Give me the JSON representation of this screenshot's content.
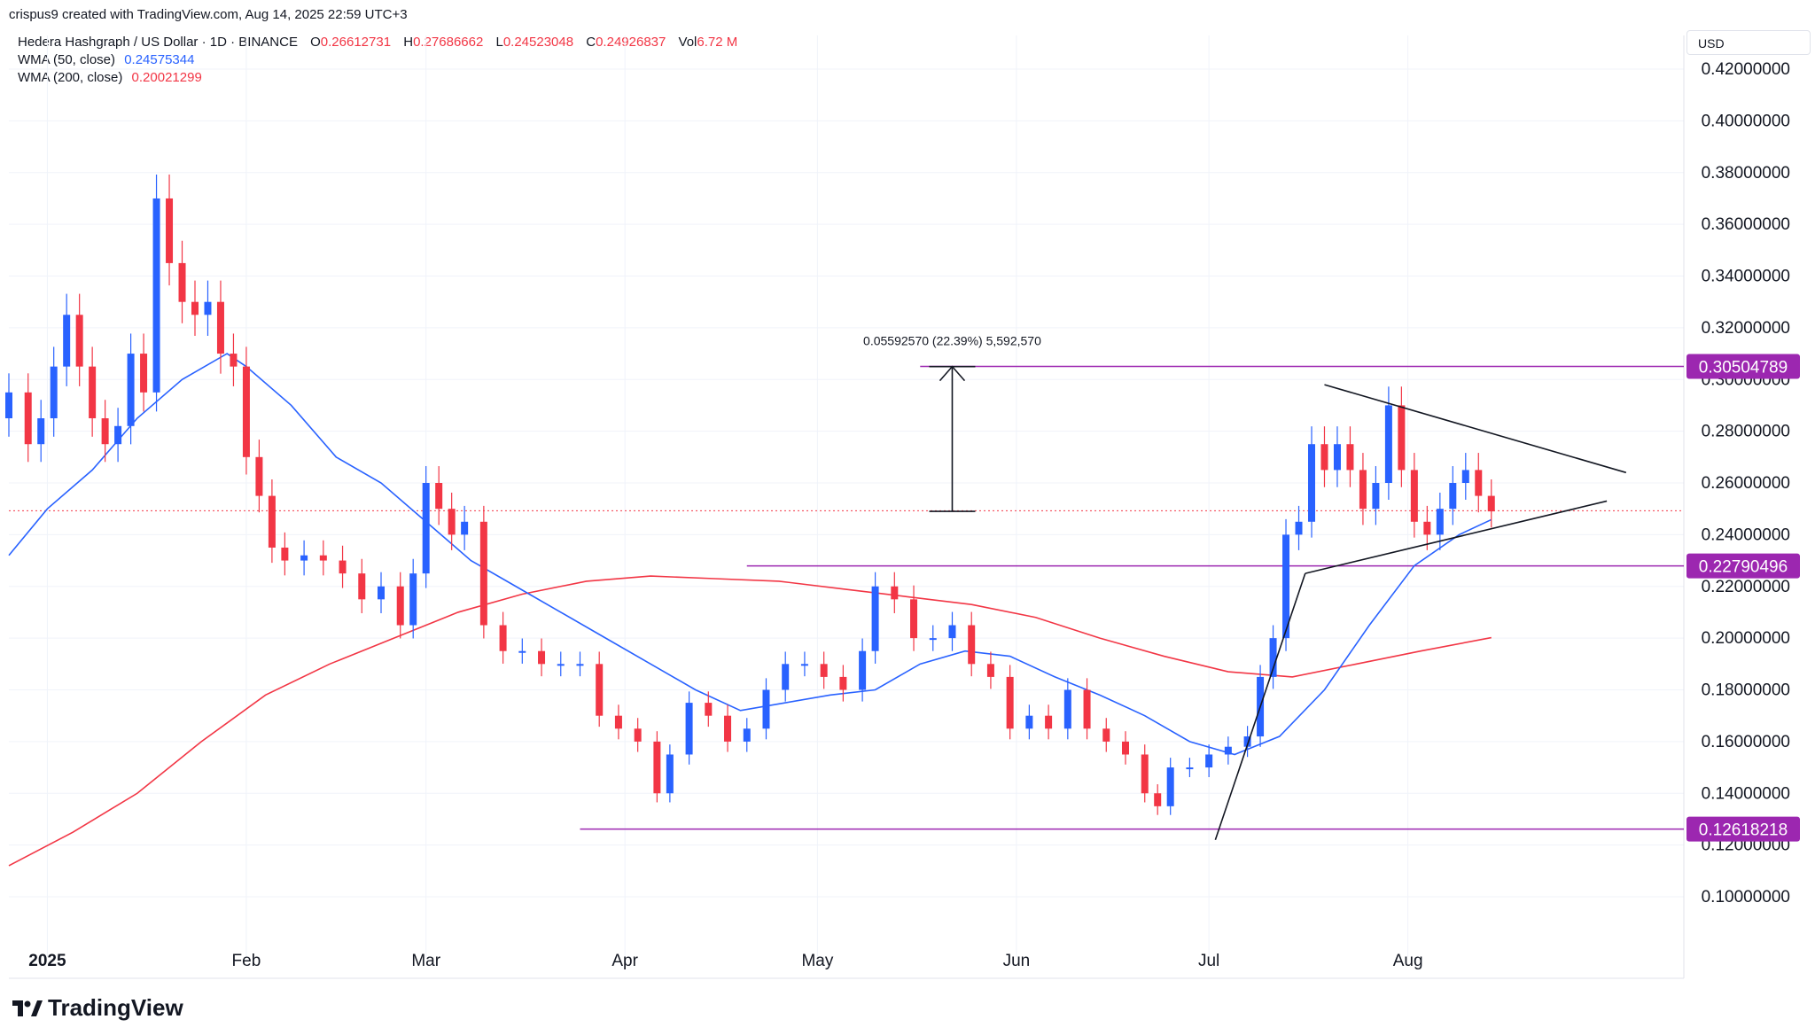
{
  "header": {
    "credit": "crispus9 created with TradingView.com, Aug 14, 2025 22:59 UTC+3",
    "symbol": "Hedera Hashgraph / US Dollar · 1D · BINANCE",
    "ohlc": {
      "o_label": "O",
      "o": "0.26612731",
      "h_label": "H",
      "h": "0.27686662",
      "l_label": "L",
      "l": "0.24523048",
      "c_label": "C",
      "c": "0.24926837",
      "vol_label": "Vol",
      "vol": "6.72 M"
    },
    "wma50_label": "WMA (50, close)",
    "wma50_value": "0.24575344",
    "wma200_label": "WMA (200, close)",
    "wma200_value": "0.20021299"
  },
  "currency": "USD",
  "brand": "TradingView",
  "colors": {
    "up": "#2962ff",
    "down": "#f23645",
    "wma50": "#2962ff",
    "wma200": "#f23645",
    "level": "#9c27b0",
    "triangle": "#131722",
    "grid": "#f0f3fa"
  },
  "chart_data": {
    "type": "candlestick",
    "title": "Hedera Hashgraph / US Dollar · 1D · BINANCE",
    "y_axis": {
      "range": [
        0.09,
        0.43
      ],
      "ticks": [
        "0.42000000",
        "0.40000000",
        "0.38000000",
        "0.36000000",
        "0.34000000",
        "0.32000000",
        "0.30000000",
        "0.28000000",
        "0.26000000",
        "0.24000000",
        "0.22000000",
        "0.20000000",
        "0.18000000",
        "0.16000000",
        "0.14000000",
        "0.12000000",
        "0.10000000"
      ],
      "tick_values": [
        0.42,
        0.4,
        0.38,
        0.36,
        0.34,
        0.32,
        0.3,
        0.28,
        0.26,
        0.24,
        0.22,
        0.2,
        0.18,
        0.16,
        0.14,
        0.12,
        0.1
      ]
    },
    "x_axis": {
      "range": [
        "2024-12-26",
        "2025-09-13"
      ],
      "labels": [
        {
          "label": "2025",
          "date": "2025-01-01"
        },
        {
          "label": "Feb",
          "date": "2025-02-01"
        },
        {
          "label": "Mar",
          "date": "2025-03-01"
        },
        {
          "label": "Apr",
          "date": "2025-04-01"
        },
        {
          "label": "May",
          "date": "2025-05-01"
        },
        {
          "label": "Jun",
          "date": "2025-06-01"
        },
        {
          "label": "Jul",
          "date": "2025-07-01"
        },
        {
          "label": "Aug",
          "date": "2025-08-01"
        }
      ]
    },
    "close_points": [
      [
        "2024-12-26",
        0.295
      ],
      [
        "2024-12-29",
        0.275
      ],
      [
        "2024-12-31",
        0.285
      ],
      [
        "2025-01-02",
        0.305
      ],
      [
        "2025-01-04",
        0.325
      ],
      [
        "2025-01-06",
        0.305
      ],
      [
        "2025-01-08",
        0.285
      ],
      [
        "2025-01-10",
        0.275
      ],
      [
        "2025-01-12",
        0.282
      ],
      [
        "2025-01-14",
        0.31
      ],
      [
        "2025-01-16",
        0.295
      ],
      [
        "2025-01-18",
        0.37
      ],
      [
        "2025-01-20",
        0.345
      ],
      [
        "2025-01-22",
        0.33
      ],
      [
        "2025-01-24",
        0.325
      ],
      [
        "2025-01-26",
        0.33
      ],
      [
        "2025-01-28",
        0.31
      ],
      [
        "2025-01-30",
        0.305
      ],
      [
        "2025-02-01",
        0.27
      ],
      [
        "2025-02-03",
        0.255
      ],
      [
        "2025-02-05",
        0.235
      ],
      [
        "2025-02-07",
        0.23
      ],
      [
        "2025-02-10",
        0.232
      ],
      [
        "2025-02-13",
        0.23
      ],
      [
        "2025-02-16",
        0.225
      ],
      [
        "2025-02-19",
        0.215
      ],
      [
        "2025-02-22",
        0.22
      ],
      [
        "2025-02-25",
        0.205
      ],
      [
        "2025-02-27",
        0.225
      ],
      [
        "2025-03-01",
        0.26
      ],
      [
        "2025-03-03",
        0.25
      ],
      [
        "2025-03-05",
        0.24
      ],
      [
        "2025-03-07",
        0.245
      ],
      [
        "2025-03-10",
        0.205
      ],
      [
        "2025-03-13",
        0.195
      ],
      [
        "2025-03-16",
        0.195
      ],
      [
        "2025-03-19",
        0.19
      ],
      [
        "2025-03-22",
        0.19
      ],
      [
        "2025-03-25",
        0.19
      ],
      [
        "2025-03-28",
        0.17
      ],
      [
        "2025-03-31",
        0.165
      ],
      [
        "2025-04-03",
        0.16
      ],
      [
        "2025-04-06",
        0.14
      ],
      [
        "2025-04-08",
        0.155
      ],
      [
        "2025-04-11",
        0.175
      ],
      [
        "2025-04-14",
        0.17
      ],
      [
        "2025-04-17",
        0.16
      ],
      [
        "2025-04-20",
        0.165
      ],
      [
        "2025-04-23",
        0.18
      ],
      [
        "2025-04-26",
        0.19
      ],
      [
        "2025-04-29",
        0.19
      ],
      [
        "2025-05-02",
        0.185
      ],
      [
        "2025-05-05",
        0.18
      ],
      [
        "2025-05-08",
        0.195
      ],
      [
        "2025-05-10",
        0.22
      ],
      [
        "2025-05-13",
        0.215
      ],
      [
        "2025-05-16",
        0.2
      ],
      [
        "2025-05-19",
        0.2
      ],
      [
        "2025-05-22",
        0.205
      ],
      [
        "2025-05-25",
        0.19
      ],
      [
        "2025-05-28",
        0.185
      ],
      [
        "2025-05-31",
        0.165
      ],
      [
        "2025-06-03",
        0.17
      ],
      [
        "2025-06-06",
        0.165
      ],
      [
        "2025-06-09",
        0.18
      ],
      [
        "2025-06-12",
        0.165
      ],
      [
        "2025-06-15",
        0.16
      ],
      [
        "2025-06-18",
        0.155
      ],
      [
        "2025-06-21",
        0.14
      ],
      [
        "2025-06-23",
        0.135
      ],
      [
        "2025-06-25",
        0.15
      ],
      [
        "2025-06-28",
        0.15
      ],
      [
        "2025-07-01",
        0.155
      ],
      [
        "2025-07-04",
        0.158
      ],
      [
        "2025-07-07",
        0.162
      ],
      [
        "2025-07-09",
        0.185
      ],
      [
        "2025-07-11",
        0.2
      ],
      [
        "2025-07-13",
        0.24
      ],
      [
        "2025-07-15",
        0.245
      ],
      [
        "2025-07-17",
        0.275
      ],
      [
        "2025-07-19",
        0.265
      ],
      [
        "2025-07-21",
        0.275
      ],
      [
        "2025-07-23",
        0.265
      ],
      [
        "2025-07-25",
        0.25
      ],
      [
        "2025-07-27",
        0.26
      ],
      [
        "2025-07-29",
        0.29
      ],
      [
        "2025-07-31",
        0.265
      ],
      [
        "2025-08-02",
        0.245
      ],
      [
        "2025-08-04",
        0.24
      ],
      [
        "2025-08-06",
        0.25
      ],
      [
        "2025-08-08",
        0.26
      ],
      [
        "2025-08-10",
        0.265
      ],
      [
        "2025-08-12",
        0.255
      ],
      [
        "2025-08-14",
        0.249
      ]
    ],
    "wma50": [
      [
        "2024-12-26",
        0.232
      ],
      [
        "2025-01-01",
        0.25
      ],
      [
        "2025-01-08",
        0.265
      ],
      [
        "2025-01-15",
        0.285
      ],
      [
        "2025-01-22",
        0.3
      ],
      [
        "2025-01-29",
        0.31
      ],
      [
        "2025-02-01",
        0.305
      ],
      [
        "2025-02-08",
        0.29
      ],
      [
        "2025-02-15",
        0.27
      ],
      [
        "2025-02-22",
        0.26
      ],
      [
        "2025-03-01",
        0.245
      ],
      [
        "2025-03-08",
        0.23
      ],
      [
        "2025-03-15",
        0.22
      ],
      [
        "2025-03-22",
        0.21
      ],
      [
        "2025-03-29",
        0.2
      ],
      [
        "2025-04-05",
        0.19
      ],
      [
        "2025-04-12",
        0.18
      ],
      [
        "2025-04-19",
        0.172
      ],
      [
        "2025-04-26",
        0.175
      ],
      [
        "2025-05-03",
        0.178
      ],
      [
        "2025-05-10",
        0.18
      ],
      [
        "2025-05-17",
        0.19
      ],
      [
        "2025-05-24",
        0.195
      ],
      [
        "2025-05-31",
        0.193
      ],
      [
        "2025-06-07",
        0.185
      ],
      [
        "2025-06-14",
        0.178
      ],
      [
        "2025-06-21",
        0.17
      ],
      [
        "2025-06-28",
        0.16
      ],
      [
        "2025-07-05",
        0.155
      ],
      [
        "2025-07-12",
        0.162
      ],
      [
        "2025-07-19",
        0.18
      ],
      [
        "2025-07-26",
        0.205
      ],
      [
        "2025-08-02",
        0.228
      ],
      [
        "2025-08-09",
        0.24
      ],
      [
        "2025-08-14",
        0.2458
      ]
    ],
    "wma200": [
      [
        "2024-12-26",
        0.112
      ],
      [
        "2025-01-05",
        0.125
      ],
      [
        "2025-01-15",
        0.14
      ],
      [
        "2025-01-25",
        0.16
      ],
      [
        "2025-02-04",
        0.178
      ],
      [
        "2025-02-14",
        0.19
      ],
      [
        "2025-02-24",
        0.2
      ],
      [
        "2025-03-06",
        0.21
      ],
      [
        "2025-03-16",
        0.217
      ],
      [
        "2025-03-26",
        0.222
      ],
      [
        "2025-04-05",
        0.224
      ],
      [
        "2025-04-15",
        0.223
      ],
      [
        "2025-04-25",
        0.222
      ],
      [
        "2025-05-05",
        0.219
      ],
      [
        "2025-05-15",
        0.216
      ],
      [
        "2025-05-25",
        0.213
      ],
      [
        "2025-06-04",
        0.208
      ],
      [
        "2025-06-14",
        0.2
      ],
      [
        "2025-06-24",
        0.193
      ],
      [
        "2025-07-04",
        0.187
      ],
      [
        "2025-07-14",
        0.185
      ],
      [
        "2025-07-24",
        0.19
      ],
      [
        "2025-08-03",
        0.195
      ],
      [
        "2025-08-14",
        0.2002
      ]
    ],
    "last_close": 0.24926837,
    "levels": [
      {
        "value": 0.30504789,
        "label": "0.30504789",
        "from": "2025-05-17"
      },
      {
        "value": 0.22790496,
        "label": "0.22790496",
        "from": "2025-04-20"
      },
      {
        "value": 0.12618218,
        "label": "0.12618218",
        "from": "2025-03-25"
      }
    ],
    "triangle": {
      "upper": [
        [
          "2025-07-19",
          0.298
        ],
        [
          "2025-09-04",
          0.264
        ]
      ],
      "lower": [
        [
          "2025-07-16",
          0.225
        ],
        [
          "2025-09-01",
          0.253
        ]
      ],
      "rally_line": [
        [
          "2025-07-02",
          0.122
        ],
        [
          "2025-07-16",
          0.225
        ]
      ]
    },
    "measure": {
      "date": "2025-05-22",
      "from": 0.249,
      "to": 0.305,
      "label": "0.05592570 (22.39%) 5,592,570"
    }
  }
}
